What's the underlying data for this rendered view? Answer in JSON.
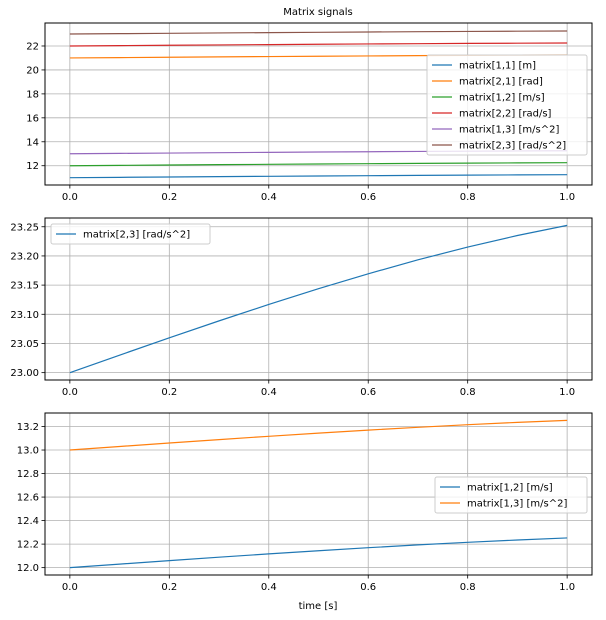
{
  "chart_data": [
    {
      "type": "line",
      "title": "Matrix signals",
      "xlabel": "",
      "ylabel": "",
      "xlim": [
        -0.05,
        1.05
      ],
      "ylim": [
        10.39,
        23.92
      ],
      "xticks": [
        "0.0",
        "0.2",
        "0.4",
        "0.6",
        "0.8",
        "1.0"
      ],
      "yticks": [
        "12",
        "14",
        "16",
        "18",
        "20",
        "22"
      ],
      "grid": true,
      "legend": "center-right",
      "x": [
        0,
        0.1,
        0.2,
        0.3,
        0.4,
        0.5,
        0.6,
        0.7,
        0.8,
        0.9,
        1.0
      ],
      "series": [
        {
          "name": "matrix[1,1] [m]",
          "color": "#1f77b4",
          "values": [
            11,
            11.03,
            11.0596,
            11.0887,
            11.1168,
            11.1438,
            11.1694,
            11.1933,
            11.2152,
            11.235,
            11.2524
          ]
        },
        {
          "name": "matrix[2,1] [rad]",
          "color": "#ff7f0e",
          "values": [
            21,
            21.03,
            21.0596,
            21.0887,
            21.1168,
            21.1438,
            21.1694,
            21.1933,
            21.2152,
            21.235,
            21.2524
          ]
        },
        {
          "name": "matrix[1,2] [m/s]",
          "color": "#2ca02c",
          "values": [
            12,
            12.03,
            12.0596,
            12.0887,
            12.1168,
            12.1438,
            12.1694,
            12.1933,
            12.2152,
            12.235,
            12.2524
          ]
        },
        {
          "name": "matrix[2,2] [rad/s]",
          "color": "#d62728",
          "values": [
            22,
            22.03,
            22.0596,
            22.0887,
            22.1168,
            22.1438,
            22.1694,
            22.1933,
            22.2152,
            22.235,
            22.2524
          ]
        },
        {
          "name": "matrix[1,3] [m/s^2]",
          "color": "#9467bd",
          "values": [
            13,
            13.03,
            13.0596,
            13.0887,
            13.1168,
            13.1438,
            13.1694,
            13.1933,
            13.2152,
            13.235,
            13.2524
          ]
        },
        {
          "name": "matrix[2,3] [rad/s^2]",
          "color": "#8c564b",
          "values": [
            23,
            23.03,
            23.0596,
            23.0887,
            23.1168,
            23.1438,
            23.1694,
            23.1933,
            23.2152,
            23.235,
            23.2524
          ]
        }
      ]
    },
    {
      "type": "line",
      "title": "",
      "xlabel": "",
      "ylabel": "",
      "xlim": [
        -0.05,
        1.05
      ],
      "ylim": [
        22.9874,
        23.265
      ],
      "xticks": [
        "0.0",
        "0.2",
        "0.4",
        "0.6",
        "0.8",
        "1.0"
      ],
      "yticks": [
        "23.00",
        "23.05",
        "23.10",
        "23.15",
        "23.20",
        "23.25"
      ],
      "grid": true,
      "legend": "upper-left",
      "x": [
        0,
        0.1,
        0.2,
        0.3,
        0.4,
        0.5,
        0.6,
        0.7,
        0.8,
        0.9,
        1.0
      ],
      "series": [
        {
          "name": "matrix[2,3] [rad/s^2]",
          "color": "#1f77b4",
          "values": [
            23,
            23.03,
            23.0596,
            23.0887,
            23.1168,
            23.1438,
            23.1694,
            23.1933,
            23.2152,
            23.235,
            23.2524
          ]
        }
      ]
    },
    {
      "type": "line",
      "title": "",
      "xlabel": "time [s]",
      "ylabel": "",
      "xlim": [
        -0.05,
        1.05
      ],
      "ylim": [
        11.9374,
        13.3148
      ],
      "xticks": [
        "0.0",
        "0.2",
        "0.4",
        "0.6",
        "0.8",
        "1.0"
      ],
      "yticks": [
        "12.0",
        "12.2",
        "12.4",
        "12.6",
        "12.8",
        "13.0",
        "13.2"
      ],
      "grid": true,
      "legend": "center-right",
      "x": [
        0,
        0.1,
        0.2,
        0.3,
        0.4,
        0.5,
        0.6,
        0.7,
        0.8,
        0.9,
        1.0
      ],
      "series": [
        {
          "name": "matrix[1,2] [m/s]",
          "color": "#1f77b4",
          "values": [
            12,
            12.03,
            12.0596,
            12.0887,
            12.1168,
            12.1438,
            12.1694,
            12.1933,
            12.2152,
            12.235,
            12.2524
          ]
        },
        {
          "name": "matrix[1,3] [m/s^2]",
          "color": "#ff7f0e",
          "values": [
            13,
            13.03,
            13.0596,
            13.0887,
            13.1168,
            13.1438,
            13.1694,
            13.1933,
            13.2152,
            13.235,
            13.2524
          ]
        }
      ]
    }
  ]
}
